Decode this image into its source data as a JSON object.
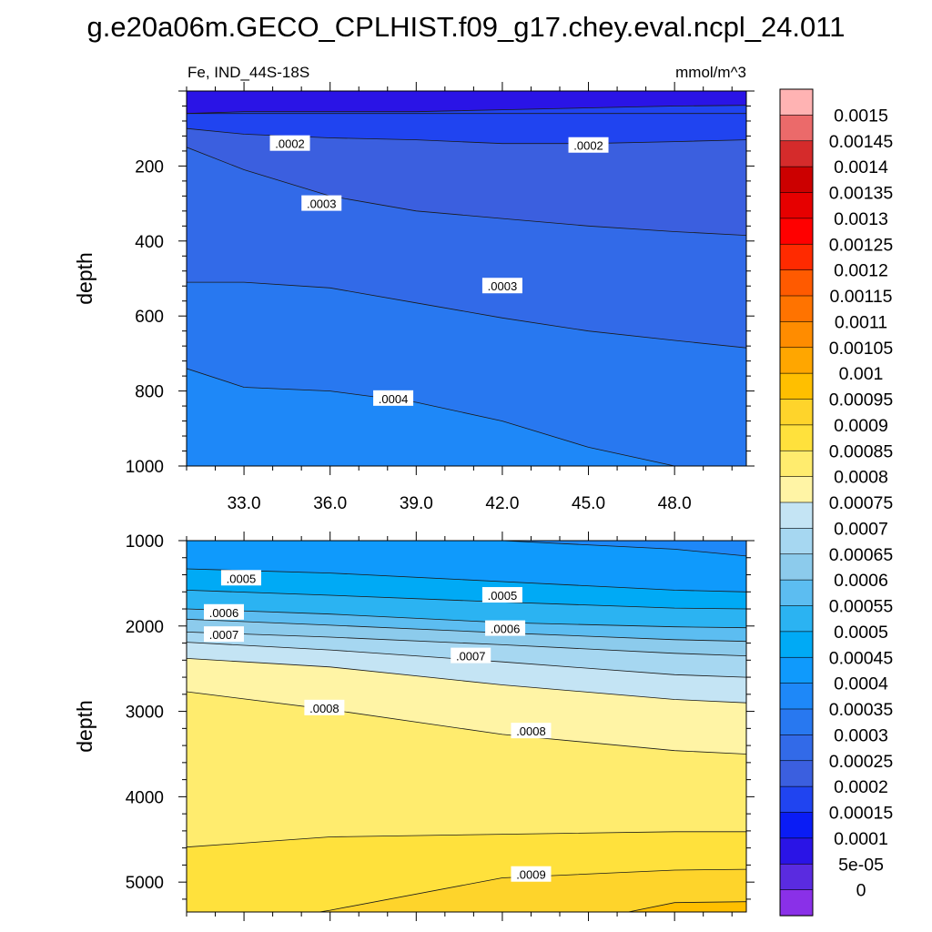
{
  "title": "g.e20a06m.GECO_CPLHIST.f09_g17.chey.eval.ncpl_24.011",
  "chart_data": {
    "type": "heatmap",
    "variable": "Fe",
    "region": "IND_44S-18S",
    "left_label": "Fe, IND_44S-18S",
    "units": "mmol/m^3",
    "x_ticks": [
      "33.0",
      "36.0",
      "39.0",
      "42.0",
      "45.0",
      "48.0"
    ],
    "x_range": [
      31.0,
      50.5
    ],
    "upper_panel": {
      "ylabel": "depth",
      "y_range": [
        0,
        1000
      ],
      "y_ticks": [
        "200",
        "400",
        "600",
        "800",
        "1000"
      ],
      "x_nodes": [
        31,
        33,
        36,
        39,
        42,
        45,
        48,
        50.5
      ],
      "contours": [
        {
          "level": 0.0001,
          "depth": [
            60,
            60,
            60,
            60,
            60,
            60,
            60,
            60
          ]
        },
        {
          "level": 0.00015,
          "depth": [
            60,
            55,
            55,
            55,
            50,
            45,
            40,
            38
          ]
        },
        {
          "level": 0.0002,
          "depth": [
            100,
            115,
            125,
            130,
            140,
            140,
            135,
            130
          ]
        },
        {
          "level": 0.00025,
          "depth": [
            150,
            210,
            280,
            320,
            340,
            360,
            375,
            385
          ]
        },
        {
          "level": 0.0003,
          "depth": [
            510,
            510,
            525,
            565,
            605,
            640,
            665,
            685
          ]
        },
        {
          "level": 0.00035,
          "depth": [
            740,
            790,
            800,
            830,
            880,
            950,
            1000,
            1050
          ]
        }
      ],
      "labels": [
        {
          "text": ".0002",
          "x": 34.6,
          "depth": 140
        },
        {
          "text": ".0002",
          "x": 45.0,
          "depth": 145
        },
        {
          "text": ".0003",
          "x": 35.7,
          "depth": 300
        },
        {
          "text": ".0003",
          "x": 42.0,
          "depth": 520
        },
        {
          "text": ".0004",
          "x": 38.2,
          "depth": 820
        }
      ]
    },
    "lower_panel": {
      "ylabel": "depth",
      "y_range": [
        1000,
        5350
      ],
      "y_ticks": [
        "1000",
        "2000",
        "3000",
        "4000",
        "5000"
      ],
      "x_nodes": [
        31,
        36,
        42,
        48,
        50.5
      ],
      "contours": [
        {
          "level": 0.0004,
          "depth": [
            1000,
            1000,
            1000,
            1100,
            1180
          ]
        },
        {
          "level": 0.00045,
          "depth": [
            1330,
            1380,
            1480,
            1580,
            1600
          ]
        },
        {
          "level": 0.0005,
          "depth": [
            1580,
            1640,
            1720,
            1790,
            1800
          ]
        },
        {
          "level": 0.00055,
          "depth": [
            1800,
            1860,
            1960,
            2010,
            2020
          ]
        },
        {
          "level": 0.0006,
          "depth": [
            1920,
            1990,
            2080,
            2160,
            2180
          ]
        },
        {
          "level": 0.00065,
          "depth": [
            2070,
            2130,
            2220,
            2320,
            2350
          ]
        },
        {
          "level": 0.0007,
          "depth": [
            2190,
            2280,
            2420,
            2570,
            2600
          ]
        },
        {
          "level": 0.00075,
          "depth": [
            2380,
            2480,
            2690,
            2860,
            2900
          ]
        },
        {
          "level": 0.0008,
          "depth": [
            2770,
            2980,
            3270,
            3460,
            3500
          ]
        },
        {
          "level": 0.00085,
          "depth": [
            4590,
            4470,
            4440,
            4410,
            4410
          ]
        },
        {
          "level": 0.0009,
          "depth": [
            5600,
            5330,
            4950,
            4860,
            4850
          ]
        },
        {
          "level": 0.00095,
          "depth": [
            5700,
            5700,
            5650,
            5240,
            5230
          ]
        }
      ],
      "labels": [
        {
          "text": ".0005",
          "x": 32.9,
          "depth": 1440
        },
        {
          "text": ".0005",
          "x": 42.0,
          "depth": 1640
        },
        {
          "text": ".0006",
          "x": 32.3,
          "depth": 1840
        },
        {
          "text": ".0006",
          "x": 42.1,
          "depth": 2030
        },
        {
          "text": ".0007",
          "x": 32.3,
          "depth": 2100
        },
        {
          "text": ".0007",
          "x": 40.9,
          "depth": 2350
        },
        {
          "text": ".0008",
          "x": 35.8,
          "depth": 2960
        },
        {
          "text": ".0008",
          "x": 43.0,
          "depth": 3230
        },
        {
          "text": ".0009",
          "x": 43.0,
          "depth": 4910
        }
      ]
    },
    "colorbar": {
      "labels": [
        "0.0015",
        "0.00145",
        "0.0014",
        "0.00135",
        "0.0013",
        "0.00125",
        "0.0012",
        "0.00115",
        "0.0011",
        "0.00105",
        "0.001",
        "0.00095",
        "0.0009",
        "0.00085",
        "0.0008",
        "0.00075",
        "0.0007",
        "0.00065",
        "0.0006",
        "0.00055",
        "0.0005",
        "0.00045",
        "0.0004",
        "0.00035",
        "0.0003",
        "0.00025",
        "0.0002",
        "0.00015",
        "0.0001",
        "5e-05",
        "0"
      ],
      "colors": [
        "#ffb3b3",
        "#eb6a6a",
        "#d52b2b",
        "#cc0000",
        "#e60000",
        "#ff0000",
        "#ff2a00",
        "#ff5a00",
        "#ff7300",
        "#ff8c00",
        "#ffa600",
        "#ffbf00",
        "#fed42b",
        "#ffe13c",
        "#ffec6e",
        "#fff4a5",
        "#c4e4f4",
        "#a6d7f1",
        "#8ccbec",
        "#5cbdf1",
        "#2bb3f2",
        "#00aaf5",
        "#0f9afc",
        "#1e88f8",
        "#2878f0",
        "#326ae8",
        "#3b5fdf",
        "#2044f0",
        "#0a1cf5",
        "#2a14e6",
        "#5a2be0",
        "#8a30e8"
      ]
    }
  }
}
